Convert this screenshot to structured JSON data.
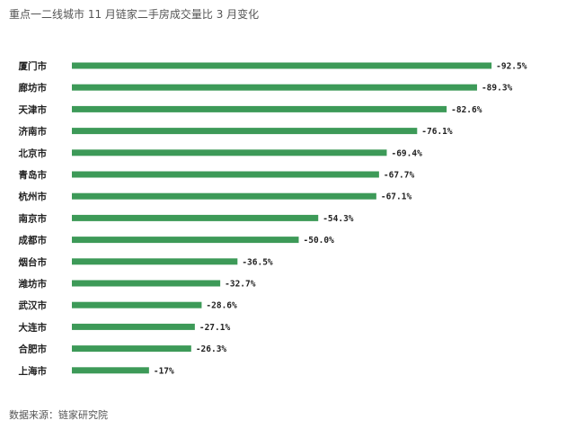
{
  "title": "重点一二线城市 11 月链家二手房成交量比 3 月变化",
  "source": "数据来源：链家研究院",
  "chart_data": {
    "type": "bar",
    "orientation": "horizontal",
    "title": "重点一二线城市 11 月链家二手房成交量比 3 月变化",
    "xlabel": "",
    "ylabel": "",
    "grid": false,
    "legend": "none",
    "bar_color": "#3d9a58",
    "xlim": [
      -100,
      0
    ],
    "categories": [
      "厦门市",
      "廊坊市",
      "天津市",
      "济南市",
      "北京市",
      "青岛市",
      "杭州市",
      "南京市",
      "成都市",
      "烟台市",
      "潍坊市",
      "武汉市",
      "大连市",
      "合肥市",
      "上海市"
    ],
    "values": [
      -92.5,
      -89.3,
      -82.6,
      -76.1,
      -69.4,
      -67.7,
      -67.1,
      -54.3,
      -50.0,
      -36.5,
      -32.7,
      -28.6,
      -27.1,
      -26.3,
      -17
    ],
    "labels": [
      "-92.5%",
      "-89.3%",
      "-82.6%",
      "-76.1%",
      "-69.4%",
      "-67.7%",
      "-67.1%",
      "-54.3%",
      "-50.0%",
      "-36.5%",
      "-32.7%",
      "-28.6%",
      "-27.1%",
      "-26.3%",
      "-17%"
    ]
  }
}
